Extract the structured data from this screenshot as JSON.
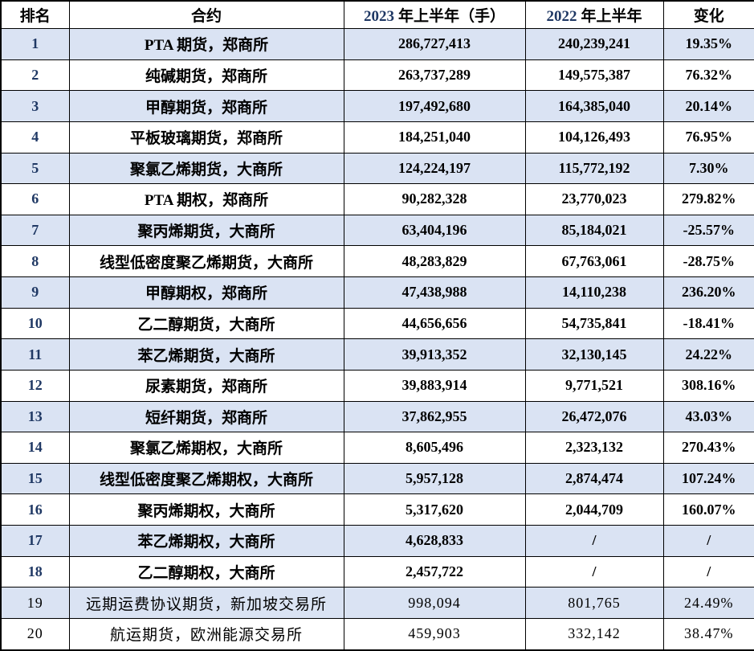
{
  "colors": {
    "stripe_row_bg": "#dae3f3",
    "row_bg": "#ffffff",
    "border": "#000000",
    "year_and_rank_digits": "#1f3864",
    "body_text": "#000000"
  },
  "table": {
    "headers": {
      "rank": "排名",
      "contract": "合约",
      "h2023_year": "2023",
      "h2023_rest": "年上半年（手）",
      "h2022_year": "2022",
      "h2022_rest": "年上半年",
      "change": "变化"
    },
    "rows": [
      {
        "rank": "1",
        "contract": "PTA 期货，郑商所",
        "h1_2023": "286,727,413",
        "h1_2022": "240,239,241",
        "change": "19.35%",
        "bold": true
      },
      {
        "rank": "2",
        "contract": "纯碱期货，郑商所",
        "h1_2023": "263,737,289",
        "h1_2022": "149,575,387",
        "change": "76.32%",
        "bold": true
      },
      {
        "rank": "3",
        "contract": "甲醇期货，郑商所",
        "h1_2023": "197,492,680",
        "h1_2022": "164,385,040",
        "change": "20.14%",
        "bold": true
      },
      {
        "rank": "4",
        "contract": "平板玻璃期货，郑商所",
        "h1_2023": "184,251,040",
        "h1_2022": "104,126,493",
        "change": "76.95%",
        "bold": true
      },
      {
        "rank": "5",
        "contract": "聚氯乙烯期货，大商所",
        "h1_2023": "124,224,197",
        "h1_2022": "115,772,192",
        "change": "7.30%",
        "bold": true
      },
      {
        "rank": "6",
        "contract": "PTA 期权，郑商所",
        "h1_2023": "90,282,328",
        "h1_2022": "23,770,023",
        "change": "279.82%",
        "bold": true
      },
      {
        "rank": "7",
        "contract": "聚丙烯期货，大商所",
        "h1_2023": "63,404,196",
        "h1_2022": "85,184,021",
        "change": "-25.57%",
        "bold": true
      },
      {
        "rank": "8",
        "contract": "线型低密度聚乙烯期货，大商所",
        "h1_2023": "48,283,829",
        "h1_2022": "67,763,061",
        "change": "-28.75%",
        "bold": true
      },
      {
        "rank": "9",
        "contract": "甲醇期权，郑商所",
        "h1_2023": "47,438,988",
        "h1_2022": "14,110,238",
        "change": "236.20%",
        "bold": true
      },
      {
        "rank": "10",
        "contract": "乙二醇期货，大商所",
        "h1_2023": "44,656,656",
        "h1_2022": "54,735,841",
        "change": "-18.41%",
        "bold": true
      },
      {
        "rank": "11",
        "contract": "苯乙烯期货，大商所",
        "h1_2023": "39,913,352",
        "h1_2022": "32,130,145",
        "change": "24.22%",
        "bold": true
      },
      {
        "rank": "12",
        "contract": "尿素期货，郑商所",
        "h1_2023": "39,883,914",
        "h1_2022": "9,771,521",
        "change": "308.16%",
        "bold": true
      },
      {
        "rank": "13",
        "contract": "短纤期货，郑商所",
        "h1_2023": "37,862,955",
        "h1_2022": "26,472,076",
        "change": "43.03%",
        "bold": true
      },
      {
        "rank": "14",
        "contract": "聚氯乙烯期权，大商所",
        "h1_2023": "8,605,496",
        "h1_2022": "2,323,132",
        "change": "270.43%",
        "bold": true
      },
      {
        "rank": "15",
        "contract": "线型低密度聚乙烯期权，大商所",
        "h1_2023": "5,957,128",
        "h1_2022": "2,874,474",
        "change": "107.24%",
        "bold": true
      },
      {
        "rank": "16",
        "contract": "聚丙烯期权，大商所",
        "h1_2023": "5,317,620",
        "h1_2022": "2,044,709",
        "change": "160.07%",
        "bold": true
      },
      {
        "rank": "17",
        "contract": "苯乙烯期权，大商所",
        "h1_2023": "4,628,833",
        "h1_2022": "/",
        "change": "/",
        "bold": true
      },
      {
        "rank": "18",
        "contract": "乙二醇期权，大商所",
        "h1_2023": "2,457,722",
        "h1_2022": "/",
        "change": "/",
        "bold": true
      },
      {
        "rank": "19",
        "contract": "远期运费协议期货，新加坡交易所",
        "h1_2023": "998,094",
        "h1_2022": "801,765",
        "change": "24.49%",
        "bold": false
      },
      {
        "rank": "20",
        "contract": "航运期货，欧洲能源交易所",
        "h1_2023": "459,903",
        "h1_2022": "332,142",
        "change": "38.47%",
        "bold": false
      }
    ]
  }
}
